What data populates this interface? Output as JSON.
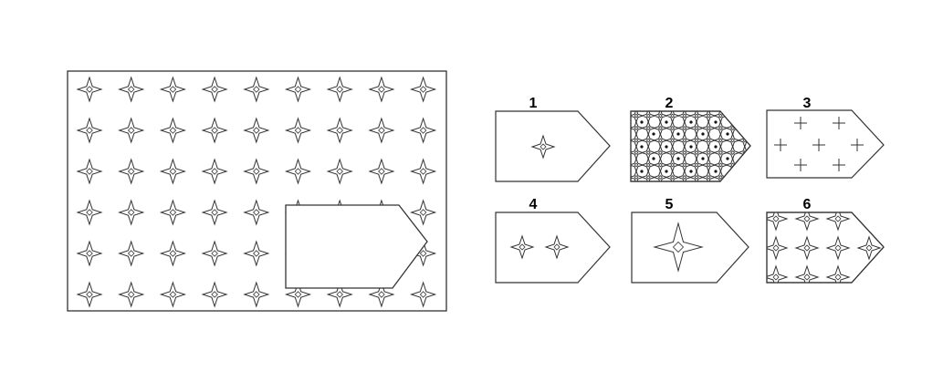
{
  "puzzle": {
    "main_figure": {
      "pattern": "four-point-star-grid",
      "rows": 6,
      "cols": 9,
      "missing_piece": "pentagon-arrow-shape"
    },
    "options": [
      {
        "number": "1",
        "pattern": "single-small-star"
      },
      {
        "number": "2",
        "pattern": "dense-star-lattice-with-dots"
      },
      {
        "number": "3",
        "pattern": "scattered-plus-signs"
      },
      {
        "number": "4",
        "pattern": "two-small-stars"
      },
      {
        "number": "5",
        "pattern": "single-large-star"
      },
      {
        "number": "6",
        "pattern": "star-grid-fragment"
      }
    ],
    "colors": {
      "stroke": "#333333",
      "fill": "#ffffff",
      "dot": "#111111"
    }
  }
}
